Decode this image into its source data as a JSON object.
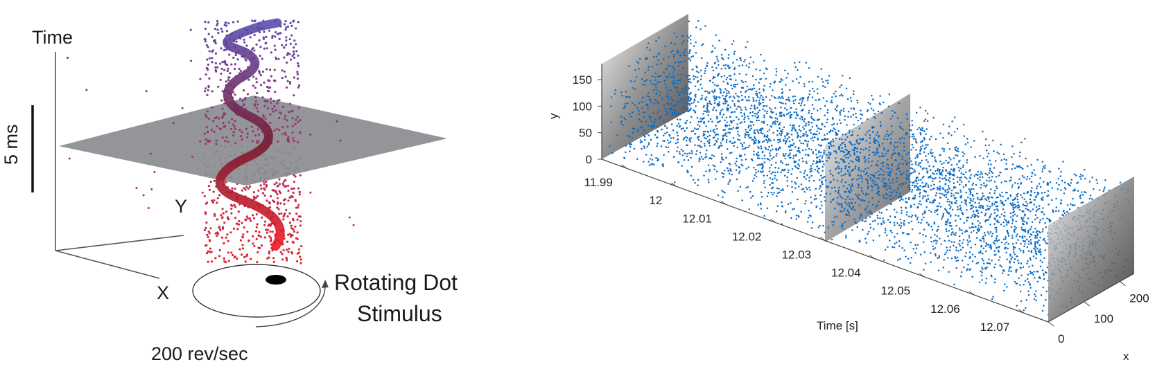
{
  "left_figure": {
    "axis_time_label": "Time",
    "axis_y_label": "Y",
    "axis_x_label": "X",
    "scale_bar_label": "5 ms",
    "stimulus_label_line1": "Rotating Dot",
    "stimulus_label_line2": "Stimulus",
    "speed_label": "200 rev/sec",
    "colors": {
      "early": "#e8202a",
      "late": "#5a4aa8",
      "plane": "#8a8c90"
    }
  },
  "chart_data": [
    {
      "type": "scatter",
      "title": "",
      "series": [
        {
          "name": "",
          "description_of_shape": "helix of events around rotating dot trajectory"
        }
      ],
      "xlabel": "X",
      "ylabel": "Y",
      "zlabel": "Time",
      "annotations": [
        "5 ms",
        "Rotating Dot",
        "Stimulus",
        "200 rev/sec"
      ]
    },
    {
      "type": "scatter",
      "title": "",
      "xlabel": "x",
      "ylabel": "y",
      "time_label": "Time [s]",
      "y_ticks": [
        "0",
        "50",
        "100",
        "150"
      ],
      "x_ticks": [
        "0",
        "100",
        "200"
      ],
      "time_ticks": [
        "11.99",
        "12",
        "12.01",
        "12.02",
        "12.03",
        "12.04",
        "12.05",
        "12.06",
        "12.07"
      ],
      "time_range": [
        11.985,
        12.075
      ],
      "x_range": [
        0,
        240
      ],
      "y_range": [
        0,
        180
      ],
      "point_color": "#0b6cc4",
      "frames_at_time": [
        11.985,
        12.03,
        12.075
      ]
    }
  ]
}
